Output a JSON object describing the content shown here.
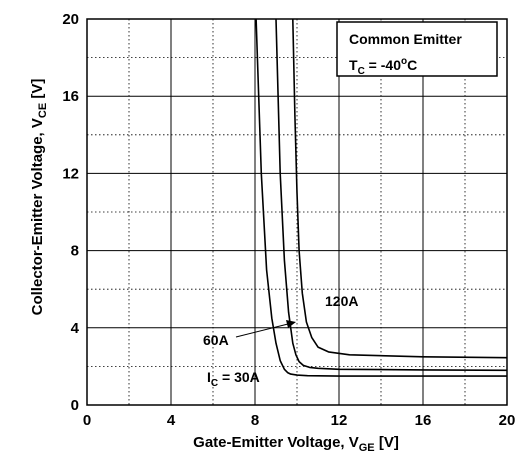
{
  "chart_data": {
    "type": "line",
    "title": "",
    "xlabel": "Gate-Emitter Voltage, V",
    "xlabel_sub": "GE",
    "xlabel_unit": " [V]",
    "ylabel": "Collector-Emitter Voltage, V",
    "ylabel_sub": "CE",
    "ylabel_unit": " [V]",
    "xlim": [
      0,
      20
    ],
    "ylim": [
      0,
      20
    ],
    "x_ticks": [
      0,
      4,
      8,
      12,
      16,
      20
    ],
    "y_ticks": [
      0,
      4,
      8,
      12,
      16,
      20
    ],
    "grid": true,
    "grid_minor": "dotted every 2 V",
    "legend_box": {
      "line1": "Common Emitter",
      "line2_main": "T",
      "line2_sub": "C",
      "line2_value": " = -40",
      "line2_sup": "o",
      "line2_unit": "C",
      "placement": "top-right"
    },
    "series": [
      {
        "name": "I = 30A",
        "label_main": "I",
        "label_sub": "C",
        "label_rest": " = 30A",
        "x": [
          8.05,
          8.3,
          8.55,
          8.8,
          9.0,
          9.2,
          9.4,
          9.55,
          9.7,
          10.0,
          10.5,
          12,
          16,
          20
        ],
        "y": [
          20,
          12,
          7.0,
          4.5,
          3.2,
          2.3,
          1.85,
          1.68,
          1.6,
          1.55,
          1.52,
          1.5,
          1.5,
          1.5
        ]
      },
      {
        "name": "60A",
        "label_main": "60A",
        "x": [
          9.0,
          9.2,
          9.4,
          9.6,
          9.8,
          9.95,
          10.1,
          10.3,
          10.6,
          11.0,
          12,
          16,
          20
        ],
        "y": [
          20,
          12,
          7.5,
          4.8,
          3.2,
          2.6,
          2.25,
          2.05,
          1.95,
          1.9,
          1.85,
          1.82,
          1.8
        ]
      },
      {
        "name": "120A",
        "label_main": "120A",
        "x": [
          9.8,
          9.9,
          10.0,
          10.1,
          10.25,
          10.45,
          10.7,
          11.0,
          11.5,
          12.5,
          16,
          20
        ],
        "y": [
          20,
          15,
          11,
          8.0,
          5.8,
          4.3,
          3.5,
          3.0,
          2.75,
          2.6,
          2.5,
          2.45
        ]
      }
    ]
  }
}
